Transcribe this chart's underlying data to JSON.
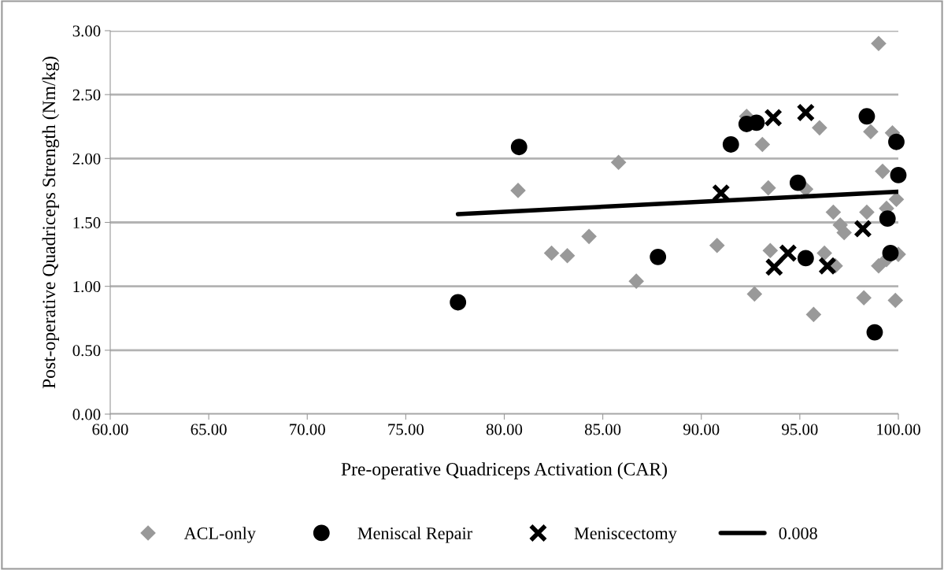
{
  "chart_data": {
    "type": "scatter",
    "xlabel": "Pre-operative Quadriceps Activation (CAR)",
    "ylabel": "Post-operative Quadriceps Strength (Nm/kg)",
    "xlim": [
      60,
      100
    ],
    "xticks": [
      {
        "value": 60,
        "label": "60.00"
      },
      {
        "value": 65,
        "label": "65.00"
      },
      {
        "value": 70,
        "label": "70.00"
      },
      {
        "value": 75,
        "label": "75.00"
      },
      {
        "value": 80,
        "label": "80.00"
      },
      {
        "value": 85,
        "label": "85.00"
      },
      {
        "value": 90,
        "label": "90.00"
      },
      {
        "value": 95,
        "label": "95.00"
      },
      {
        "value": 100,
        "label": "100.00"
      }
    ],
    "ylim": [
      0,
      3
    ],
    "yticks": [
      {
        "value": 0,
        "label": "0.00"
      },
      {
        "value": 0.5,
        "label": "0.50"
      },
      {
        "value": 1,
        "label": "1.00"
      },
      {
        "value": 1.5,
        "label": "1.50"
      },
      {
        "value": 2,
        "label": "2.00"
      },
      {
        "value": 2.5,
        "label": "2.50"
      },
      {
        "value": 3,
        "label": "3.00"
      }
    ],
    "grid": "y",
    "legend": "bottom",
    "series": [
      {
        "name": "ACL-only",
        "marker": "diamond",
        "color": "#999999",
        "x": [
          80.7,
          85.8,
          82.4,
          83.2,
          84.3,
          86.7,
          90.8,
          92.3,
          93.1,
          93.4,
          95.3,
          96.0,
          99.0,
          98.6,
          99.7,
          99.2,
          99.9,
          96.7,
          98.4,
          99.4,
          97.05,
          97.25,
          93.5,
          96.25,
          96.8,
          99.0,
          99.4,
          100.0,
          92.7,
          95.7,
          98.25,
          99.85
        ],
        "values": [
          1.75,
          1.97,
          1.26,
          1.24,
          1.39,
          1.04,
          1.32,
          2.33,
          2.11,
          1.77,
          1.76,
          2.24,
          2.9,
          2.21,
          2.2,
          1.9,
          1.68,
          1.58,
          1.58,
          1.61,
          1.48,
          1.42,
          1.28,
          1.26,
          1.16,
          1.16,
          1.21,
          1.25,
          0.94,
          0.78,
          0.91,
          0.89
        ]
      },
      {
        "name": "Meniscal Repair",
        "marker": "circle",
        "color": "#000000",
        "x": [
          77.65,
          80.75,
          87.8,
          91.5,
          92.3,
          92.8,
          94.9,
          98.4,
          99.9,
          100.0,
          99.45,
          99.6,
          95.3,
          98.8
        ],
        "values": [
          0.875,
          2.09,
          1.23,
          2.11,
          2.27,
          2.28,
          1.81,
          2.33,
          2.13,
          1.87,
          1.53,
          1.26,
          1.22,
          0.64
        ]
      },
      {
        "name": "Meniscectomy",
        "marker": "cross",
        "color": "#000000",
        "x": [
          93.65,
          95.3,
          91.0,
          98.2,
          94.4,
          93.7,
          96.4
        ],
        "values": [
          2.32,
          2.36,
          1.73,
          1.45,
          1.26,
          1.15,
          1.16
        ]
      },
      {
        "name": "0.008",
        "type": "line",
        "marker": "none",
        "line_style": "solid",
        "color": "#000000",
        "x": [
          77.65,
          100
        ],
        "values": [
          1.565,
          1.74
        ]
      }
    ]
  }
}
